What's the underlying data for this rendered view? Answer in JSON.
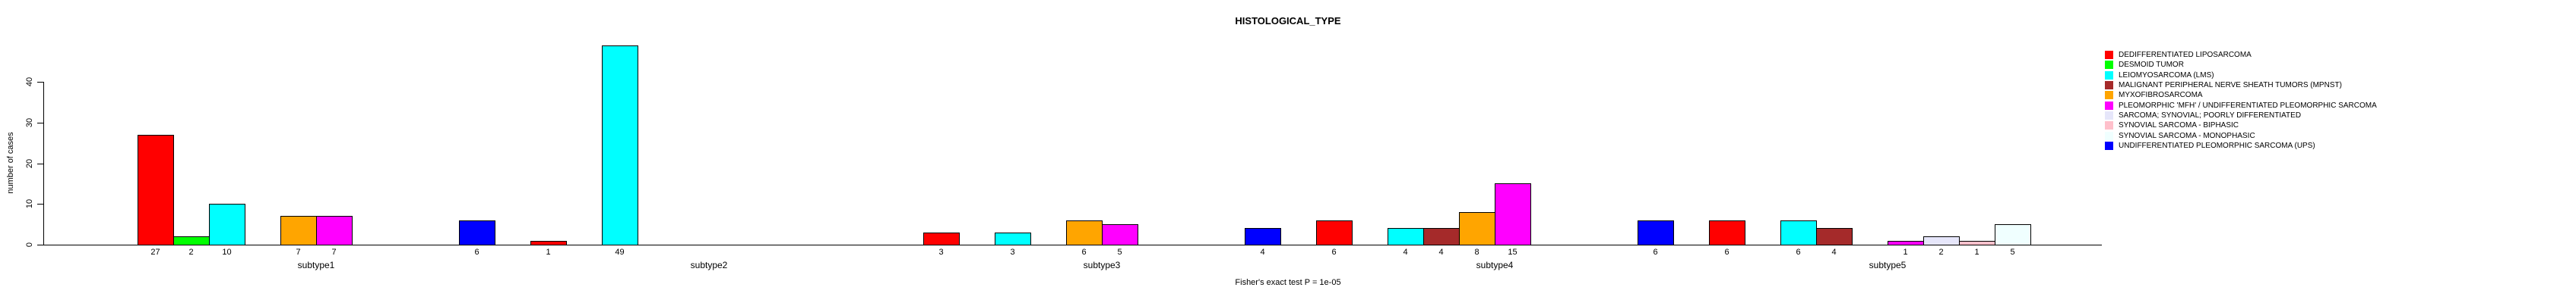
{
  "title": "HISTOLOGICAL_TYPE",
  "caption": "Fisher's exact test P = 1e-05",
  "chart_data": {
    "type": "bar",
    "title": "HISTOLOGICAL_TYPE",
    "subtitle": "Fisher's exact test P = 1e-05",
    "xlabel": "",
    "ylabel": "number of cases",
    "ylim": [
      0,
      49
    ],
    "yticks": [
      0,
      10,
      20,
      30,
      40
    ],
    "grid": false,
    "legend_position": "right",
    "bar_value_labels": "shown under each nonzero bar",
    "categories": [
      "subtype1",
      "subtype2",
      "subtype3",
      "subtype4",
      "subtype5"
    ],
    "series": [
      {
        "name": "DEDIFFERENTIATED LIPOSARCOMA",
        "color": "#FF0000",
        "values": [
          27,
          1,
          3,
          6,
          6
        ]
      },
      {
        "name": "DESMOID TUMOR",
        "color": "#00FF00",
        "values": [
          2,
          0,
          0,
          0,
          0
        ]
      },
      {
        "name": "LEIOMYOSARCOMA (LMS)",
        "color": "#00FFFF",
        "values": [
          10,
          49,
          3,
          4,
          6
        ]
      },
      {
        "name": "MALIGNANT PERIPHERAL NERVE SHEATH TUMORS (MPNST)",
        "color": "#A52A2A",
        "values": [
          0,
          0,
          0,
          4,
          4
        ]
      },
      {
        "name": "MYXOFIBROSARCOMA",
        "color": "#FFA500",
        "values": [
          7,
          0,
          6,
          8,
          0
        ]
      },
      {
        "name": "PLEOMORPHIC 'MFH' / UNDIFFERENTIATED PLEOMORPHIC SARCOMA",
        "color": "#FF00FF",
        "values": [
          7,
          0,
          5,
          15,
          1
        ]
      },
      {
        "name": "SARCOMA; SYNOVIAL; POORLY DIFFERENTIATED",
        "color": "#E6E6FA",
        "values": [
          0,
          0,
          0,
          0,
          2
        ]
      },
      {
        "name": "SYNOVIAL SARCOMA - BIPHASIC",
        "color": "#FFC0CB",
        "values": [
          0,
          0,
          0,
          0,
          1
        ]
      },
      {
        "name": "SYNOVIAL SARCOMA - MONOPHASIC",
        "color": "#F0FFFF",
        "values": [
          0,
          0,
          0,
          0,
          5
        ]
      },
      {
        "name": "UNDIFFERENTIATED PLEOMORPHIC SARCOMA (UPS)",
        "color": "#0000FF",
        "values": [
          6,
          0,
          4,
          6,
          0
        ]
      }
    ]
  }
}
